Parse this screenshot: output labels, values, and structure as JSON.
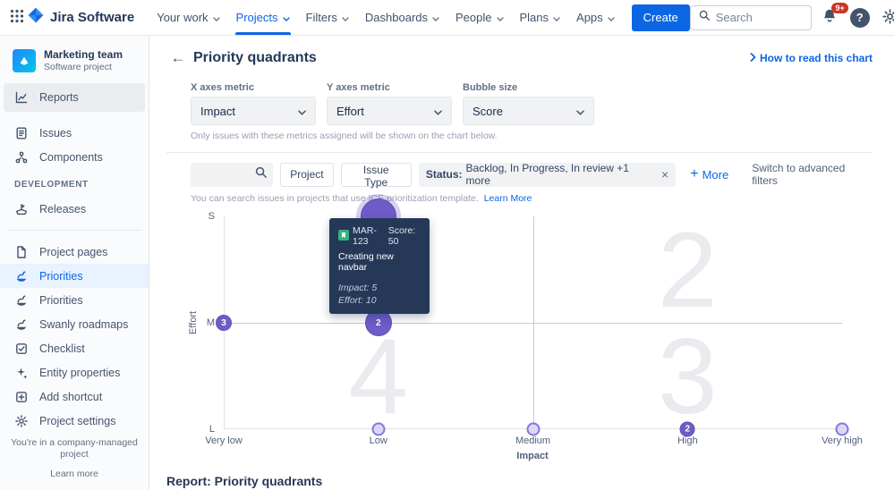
{
  "icons": {
    "back": "←",
    "close": "×",
    "help": "?",
    "plus": "+"
  },
  "topbar": {
    "logo_text": "Jira Software",
    "nav": [
      {
        "label": "Your work"
      },
      {
        "label": "Projects",
        "active": true
      },
      {
        "label": "Filters"
      },
      {
        "label": "Dashboards"
      },
      {
        "label": "People"
      },
      {
        "label": "Plans"
      },
      {
        "label": "Apps"
      }
    ],
    "create_label": "Create",
    "search_placeholder": "Search",
    "notifications_badge": "9+"
  },
  "sidebar": {
    "project_name": "Marketing team",
    "project_type": "Software project",
    "groups": [
      {
        "items": [
          {
            "label": "Reports",
            "icon": "reports",
            "hover": true
          },
          {
            "label": "Issues",
            "icon": "issues"
          },
          {
            "label": "Components",
            "icon": "components"
          }
        ]
      },
      {
        "heading": "DEVELOPMENT",
        "items": [
          {
            "label": "Releases",
            "icon": "releases"
          }
        ]
      },
      {
        "divider": true,
        "items": [
          {
            "label": "Project pages",
            "icon": "pages"
          },
          {
            "label": "Priorities",
            "icon": "swan",
            "active": true
          },
          {
            "label": "Priorities",
            "icon": "swan"
          },
          {
            "label": "Swanly roadmaps",
            "icon": "swanly"
          },
          {
            "label": "Checklist",
            "icon": "checklist"
          },
          {
            "label": "Entity properties",
            "icon": "sparkle"
          },
          {
            "label": "Add shortcut",
            "icon": "addshortcut"
          },
          {
            "label": "Project settings",
            "icon": "gear"
          }
        ]
      }
    ],
    "footer_text": "You're in a company-managed project",
    "footer_link": "Learn more"
  },
  "page": {
    "title": "Priority quadrants",
    "help_link": "How to read this chart"
  },
  "controls": {
    "x_metric": {
      "label": "X axes metric",
      "value": "Impact"
    },
    "y_metric": {
      "label": "Y axes metric",
      "value": "Effort"
    },
    "bubble_size": {
      "label": "Bubble size",
      "value": "Score"
    },
    "hint": "Only issues with these metrics assigned will be shown on the chart below."
  },
  "filters": {
    "buttons": [
      "Project",
      "Issue Type"
    ],
    "status_chip": {
      "prefix": "Status:",
      "value": "Backlog, In Progress, In review +1 more"
    },
    "more_label": "More",
    "advanced_label": "Switch to advanced filters",
    "hint": "You can search issues in projects that use ICE prioritization template.",
    "hint_link": "Learn More"
  },
  "chart_data": {
    "type": "scatter",
    "title": "Priority quadrants",
    "xlabel": "Impact",
    "ylabel": "Effort",
    "x_ticks": [
      "Very low",
      "Low",
      "Medium",
      "High",
      "Very high"
    ],
    "y_ticks": [
      "S",
      "M",
      "L"
    ],
    "quadrants": [
      {
        "label": "1",
        "col": 0,
        "row": 0
      },
      {
        "label": "2",
        "col": 1,
        "row": 0
      },
      {
        "label": "4",
        "col": 0,
        "row": 1
      },
      {
        "label": "3",
        "col": 1,
        "row": 1
      }
    ],
    "bubbles": [
      {
        "x": "Low",
        "y": "S",
        "xi": 1,
        "yi": 0,
        "d": 40,
        "variant": "dark",
        "label": "",
        "halo": true
      },
      {
        "x": "Very low",
        "y": "M",
        "xi": 0,
        "yi": 1,
        "d": 18,
        "variant": "dark",
        "label": "3"
      },
      {
        "x": "Low",
        "y": "M",
        "xi": 1,
        "yi": 1,
        "d": 30,
        "variant": "dark",
        "label": "2"
      },
      {
        "x": "Low",
        "y": "L",
        "xi": 1,
        "yi": 2,
        "d": 15,
        "variant": "light",
        "label": ""
      },
      {
        "x": "Medium",
        "y": "L",
        "xi": 2,
        "yi": 2,
        "d": 15,
        "variant": "light",
        "label": ""
      },
      {
        "x": "High",
        "y": "L",
        "xi": 3,
        "yi": 2,
        "d": 17,
        "variant": "dark",
        "label": "2"
      },
      {
        "x": "Very high",
        "y": "L",
        "xi": 4,
        "yi": 2,
        "d": 15,
        "variant": "light",
        "label": ""
      }
    ],
    "tooltip": {
      "issue_key": "MAR-123",
      "score": "Score: 50",
      "title": "Creating new navbar",
      "impact": "Impact: 5",
      "effort": "Effort: 10"
    }
  },
  "report": {
    "title": "Report: Priority quadrants"
  }
}
